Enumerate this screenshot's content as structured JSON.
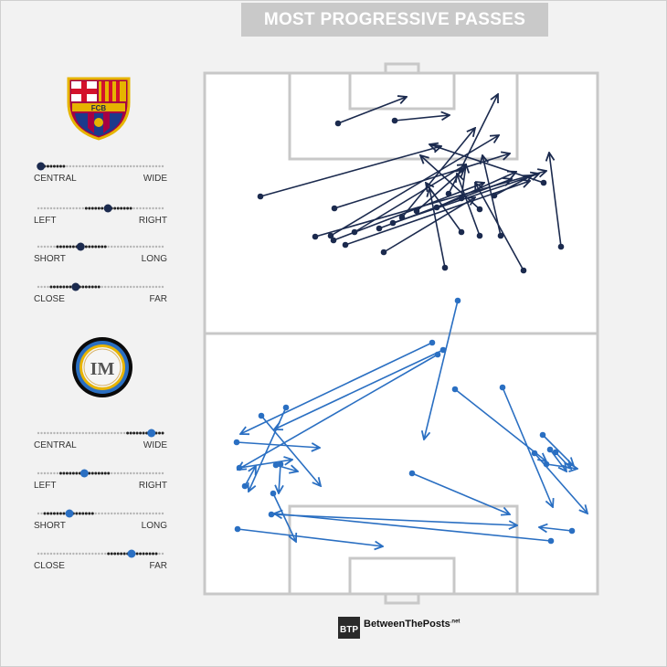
{
  "title": "MOST PROGRESSIVE PASSES",
  "brand": {
    "name": "BetweenThePosts",
    "suffix": ".net",
    "logo_text": "BTP"
  },
  "teams": [
    {
      "name": "Barcelona",
      "crest_text": "FCB",
      "accent": "#1b2a4e"
    },
    {
      "name": "Inter",
      "crest_text": "IM",
      "accent": "#2a6fc2"
    }
  ],
  "slider_labels": [
    {
      "left": "CENTRAL",
      "right": "WIDE"
    },
    {
      "left": "LEFT",
      "right": "RIGHT"
    },
    {
      "left": "SHORT",
      "right": "LONG"
    },
    {
      "left": "CLOSE",
      "right": "FAR"
    }
  ],
  "chart_data": {
    "type": "scatter",
    "description": "pass map with arrows on a vertical pitch",
    "series": [
      {
        "name": "Barcelona",
        "color": "#1b2a4e",
        "sliders": [
          0.02,
          0.56,
          0.34,
          0.3
        ],
        "passes": [
          [
            370,
            135,
            445,
            106
          ],
          [
            432,
            132,
            492,
            126
          ],
          [
            285,
            215,
            483,
            160
          ],
          [
            366,
            228,
            558,
            168
          ],
          [
            345,
            259,
            598,
            187
          ],
          [
            362,
            258,
            546,
            148
          ],
          [
            378,
            268,
            580,
            198
          ],
          [
            415,
            250,
            560,
            196
          ],
          [
            430,
            244,
            590,
            190
          ],
          [
            440,
            238,
            520,
            140
          ],
          [
            456,
            231,
            508,
            185
          ],
          [
            478,
            227,
            565,
            188
          ],
          [
            491,
            212,
            545,
            103
          ],
          [
            505,
            217,
            510,
            180
          ],
          [
            525,
            229,
            460,
            170
          ],
          [
            505,
            254,
            466,
            200
          ],
          [
            525,
            258,
            500,
            190
          ],
          [
            548,
            258,
            528,
            170
          ],
          [
            487,
            293,
            470,
            206
          ],
          [
            573,
            296,
            520,
            200
          ],
          [
            614,
            270,
            601,
            167
          ],
          [
            595,
            200,
            470,
            158
          ],
          [
            541,
            214,
            582,
            192
          ],
          [
            388,
            254,
            510,
            180
          ],
          [
            420,
            276,
            520,
            216
          ],
          [
            365,
            263,
            530,
            200
          ]
        ]
      },
      {
        "name": "Inter",
        "color": "#2a6fc2",
        "sliders": [
          0.91,
          0.37,
          0.25,
          0.75
        ],
        "passes": [
          [
            501,
            329,
            464,
            481
          ],
          [
            473,
            375,
            263,
            475
          ],
          [
            485,
            383,
            300,
            470
          ],
          [
            479,
            388,
            260,
            514
          ],
          [
            286,
            455,
            351,
            532
          ],
          [
            313,
            446,
            272,
            538
          ],
          [
            259,
            484,
            350,
            490
          ],
          [
            262,
            512,
            320,
            503
          ],
          [
            268,
            532,
            280,
            510
          ],
          [
            302,
            509,
            326,
            516
          ],
          [
            260,
            579,
            419,
            598
          ],
          [
            297,
            563,
            566,
            575
          ],
          [
            299,
            540,
            324,
            593
          ],
          [
            307,
            508,
            305,
            540
          ],
          [
            498,
            426,
            598,
            505
          ],
          [
            550,
            424,
            605,
            555
          ],
          [
            594,
            476,
            628,
            510
          ],
          [
            602,
            492,
            620,
            516
          ],
          [
            608,
            495,
            625,
            513
          ],
          [
            585,
            496,
            643,
            562
          ],
          [
            451,
            518,
            558,
            563
          ],
          [
            626,
            581,
            590,
            577
          ],
          [
            603,
            592,
            300,
            562
          ],
          [
            598,
            508,
            632,
            513
          ]
        ]
      }
    ]
  }
}
